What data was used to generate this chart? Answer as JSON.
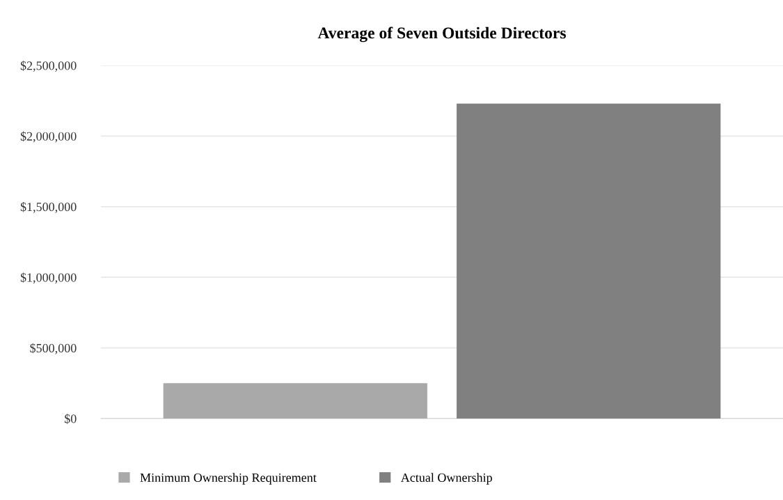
{
  "chart_data": {
    "type": "bar",
    "title": "Average of Seven Outside Directors",
    "categories": [
      null
    ],
    "series": [
      {
        "name": "Minimum Ownership Requirement",
        "color": "#a9a9a9",
        "values": [
          250000
        ]
      },
      {
        "name": "Actual Ownership",
        "color": "#808080",
        "values": [
          2230000
        ]
      }
    ],
    "ylim": [
      0,
      2500000
    ],
    "yticks": [
      {
        "value": 0,
        "label": "$0"
      },
      {
        "value": 500000,
        "label": "$500,000"
      },
      {
        "value": 1000000,
        "label": "$1,000,000"
      },
      {
        "value": 1500000,
        "label": "$1,500,000"
      },
      {
        "value": 2000000,
        "label": "$2,000,000"
      },
      {
        "value": 2500000,
        "label": "$2,500,000"
      }
    ],
    "grid": "y",
    "legend": "bottom"
  }
}
